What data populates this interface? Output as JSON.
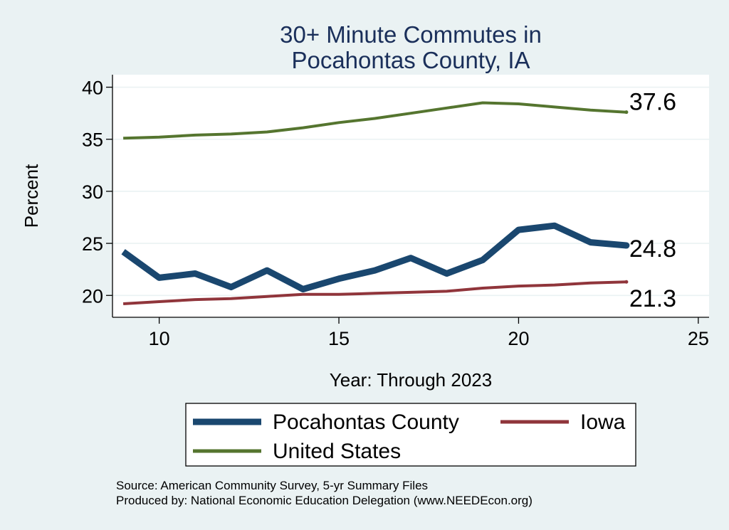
{
  "chart_data": {
    "type": "line",
    "title": [
      "30+ Minute Commutes in",
      "Pocahontas County, IA"
    ],
    "xlabel": "Year: Through 2023",
    "ylabel": "Percent",
    "xlim": [
      8.7,
      25.3
    ],
    "ylim": [
      17.9,
      41.2
    ],
    "xticks": [
      10,
      15,
      20,
      25
    ],
    "yticks": [
      20,
      25,
      30,
      35,
      40
    ],
    "grid": true,
    "series": [
      {
        "key": "pocahontas",
        "name": "Pocahontas County",
        "color": "#1a476f",
        "x": [
          9,
          10,
          11,
          12,
          13,
          14,
          15,
          16,
          17,
          18,
          19,
          20,
          21,
          22,
          23
        ],
        "values": [
          24.2,
          21.7,
          22.1,
          20.8,
          22.4,
          20.6,
          21.6,
          22.4,
          23.6,
          22.1,
          23.4,
          26.3,
          26.7,
          25.1,
          24.8
        ],
        "end_label": "24.8"
      },
      {
        "key": "iowa",
        "name": "Iowa",
        "color": "#90353b",
        "x": [
          9,
          10,
          11,
          12,
          13,
          14,
          15,
          16,
          17,
          18,
          19,
          20,
          21,
          22,
          23
        ],
        "values": [
          19.2,
          19.4,
          19.6,
          19.7,
          19.9,
          20.1,
          20.1,
          20.2,
          20.3,
          20.4,
          20.7,
          20.9,
          21.0,
          21.2,
          21.3
        ],
        "end_label": "21.3"
      },
      {
        "key": "us",
        "name": "United States",
        "color": "#55752f",
        "x": [
          9,
          10,
          11,
          12,
          13,
          14,
          15,
          16,
          17,
          18,
          19,
          20,
          21,
          22,
          23
        ],
        "values": [
          35.1,
          35.2,
          35.4,
          35.5,
          35.7,
          36.1,
          36.6,
          37.0,
          37.5,
          38.0,
          38.5,
          38.4,
          38.1,
          37.8,
          37.6
        ],
        "end_label": "37.6"
      }
    ],
    "legend": {
      "placement": "bottom",
      "order": [
        "pocahontas",
        "iowa",
        "us"
      ]
    },
    "notes": [
      "Source: American Community Survey, 5-yr Summary Files",
      "Produced by: National Economic Education Delegation (www.NEEDEcon.org)"
    ]
  }
}
